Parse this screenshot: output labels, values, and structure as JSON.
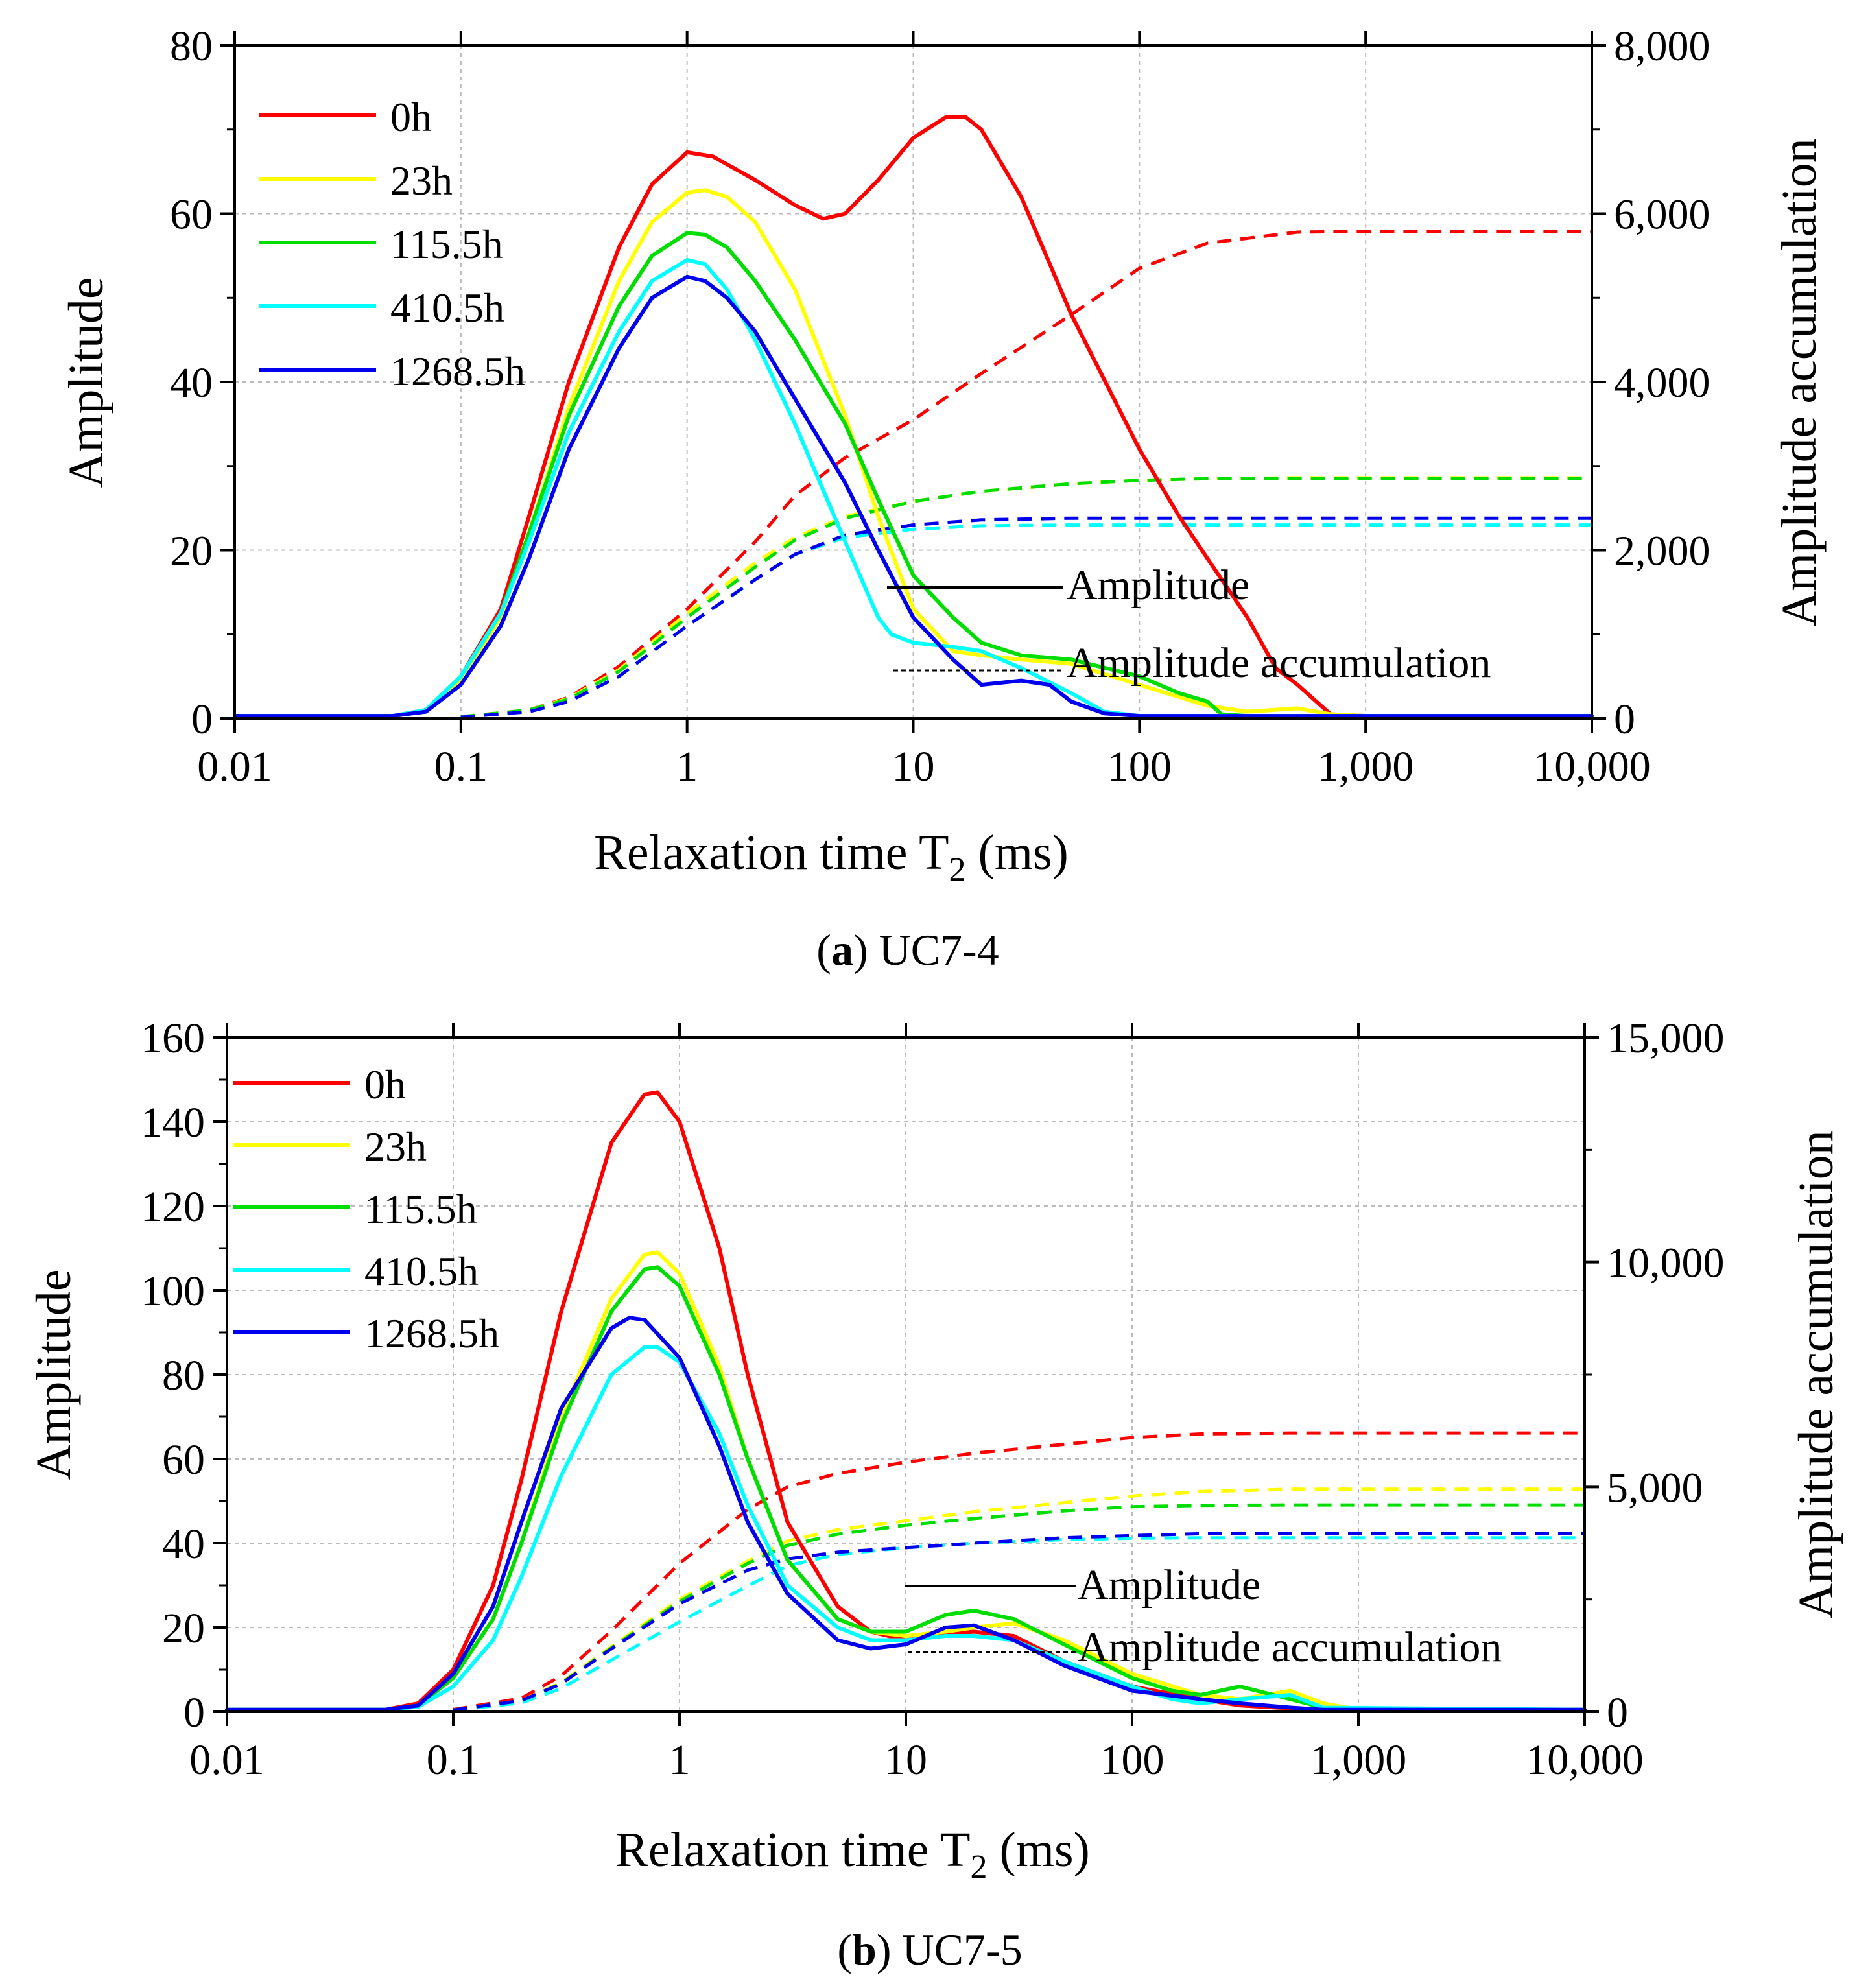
{
  "chart_data": [
    {
      "id": "a",
      "type": "line",
      "caption_letter": "a",
      "caption_text": ") UC7-4",
      "caption_open": "(",
      "xlabel_main": "Relaxation time T",
      "xlabel_sub": "2",
      "xlabel_unit": " (ms)",
      "ylabel": "Amplitude",
      "y2label": "Amplitude accumulation",
      "xscale": "log",
      "xlim": [
        0.01,
        10000
      ],
      "ylim": [
        0,
        80
      ],
      "y2lim": [
        0,
        8000
      ],
      "x_ticks": [
        0.01,
        0.1,
        1,
        10,
        100,
        1000,
        10000
      ],
      "x_tick_labels": [
        "0.01",
        "0.1",
        "1",
        "10",
        "100",
        "1,000",
        "10,000"
      ],
      "y_ticks": [
        0,
        20,
        40,
        60,
        80
      ],
      "y_tick_labels": [
        "0",
        "20",
        "40",
        "60",
        "80"
      ],
      "y2_ticks": [
        0,
        2000,
        4000,
        6000,
        8000
      ],
      "y2_tick_labels": [
        "0",
        "2,000",
        "4,000",
        "6,000",
        "8,000"
      ],
      "grid": true,
      "legend_placement": "top-left",
      "annotation_solid": "Amplitude",
      "annotation_dashed": "Amplitude accumulation",
      "series": [
        {
          "name": "0h",
          "color": "#ff0000",
          "x": [
            0.01,
            0.05,
            0.07,
            0.1,
            0.15,
            0.2,
            0.3,
            0.5,
            0.7,
            1,
            1.3,
            2,
            3,
            4,
            5,
            7,
            10,
            14,
            17,
            20,
            30,
            50,
            100,
            150,
            200,
            300,
            400,
            500,
            700,
            1000,
            10000
          ],
          "y": [
            0.3,
            0.3,
            1,
            5,
            13,
            24,
            40,
            56,
            63.5,
            67.3,
            66.8,
            64,
            61,
            59.4,
            60,
            64,
            69,
            71.5,
            71.5,
            70,
            62,
            48,
            32,
            24,
            19,
            12,
            6,
            4,
            0.5,
            0.3,
            0.3
          ],
          "acc_x": [
            0.1,
            0.2,
            0.3,
            0.5,
            1,
            2,
            3,
            5,
            10,
            20,
            50,
            100,
            200,
            500,
            1000,
            10000
          ],
          "acc_y": [
            20,
            100,
            250,
            620,
            1300,
            2100,
            2650,
            3100,
            3550,
            4100,
            4800,
            5350,
            5650,
            5780,
            5790,
            5790
          ]
        },
        {
          "name": "23h",
          "color": "#ffff00",
          "x": [
            0.01,
            0.05,
            0.07,
            0.1,
            0.15,
            0.2,
            0.3,
            0.5,
            0.7,
            1,
            1.2,
            1.5,
            2,
            3,
            5,
            7,
            10,
            15,
            20,
            30,
            50,
            100,
            200,
            300,
            500,
            700,
            1000,
            10000
          ],
          "y": [
            0.3,
            0.3,
            0.8,
            4.5,
            12,
            22,
            37,
            52,
            59,
            62.5,
            62.8,
            62,
            59,
            51,
            36,
            24,
            13,
            8,
            7.5,
            7,
            6.5,
            4,
            1.5,
            0.8,
            1.2,
            0.5,
            0.3,
            0.3
          ],
          "acc_x": [
            0.1,
            0.2,
            0.3,
            0.5,
            1,
            2,
            3,
            5,
            10,
            20,
            50,
            100,
            200,
            500,
            1000,
            10000
          ],
          "acc_y": [
            20,
            100,
            240,
            580,
            1250,
            1850,
            2150,
            2400,
            2580,
            2700,
            2790,
            2830,
            2850,
            2860,
            2860,
            2860
          ]
        },
        {
          "name": "115.5h",
          "color": "#00dd00",
          "x": [
            0.01,
            0.05,
            0.07,
            0.1,
            0.15,
            0.2,
            0.3,
            0.5,
            0.7,
            1,
            1.2,
            1.5,
            2,
            3,
            5,
            7,
            10,
            15,
            20,
            30,
            50,
            100,
            150,
            200,
            230,
            300,
            500,
            700,
            1000,
            10000
          ],
          "y": [
            0.3,
            0.3,
            1,
            5,
            12.5,
            22,
            36,
            49,
            55,
            57.7,
            57.5,
            56,
            52,
            45,
            35,
            26,
            17,
            12,
            9,
            7.5,
            7,
            5,
            3,
            2,
            0.5,
            0.3,
            0.3,
            0.3,
            0.3,
            0.3
          ],
          "acc_x": [
            0.1,
            0.2,
            0.3,
            0.5,
            1,
            2,
            3,
            5,
            10,
            20,
            50,
            100,
            200,
            500,
            1000,
            10000
          ],
          "acc_y": [
            20,
            100,
            230,
            560,
            1200,
            1800,
            2120,
            2380,
            2580,
            2700,
            2790,
            2830,
            2850,
            2850,
            2850,
            2850
          ]
        },
        {
          "name": "410.5h",
          "color": "#00ffff",
          "x": [
            0.01,
            0.05,
            0.07,
            0.1,
            0.15,
            0.2,
            0.3,
            0.5,
            0.7,
            1,
            1.2,
            1.5,
            2,
            3,
            5,
            7,
            8,
            10,
            15,
            20,
            30,
            50,
            70,
            100,
            10000
          ],
          "y": [
            0.3,
            0.3,
            1,
            5,
            12.5,
            21,
            34,
            46,
            52,
            54.5,
            54,
            51,
            45,
            35,
            21,
            12,
            10,
            9,
            8.5,
            8,
            6,
            3,
            0.8,
            0.3,
            0.3
          ],
          "acc_x": [
            0.1,
            0.2,
            0.3,
            0.5,
            1,
            2,
            3,
            5,
            10,
            20,
            50,
            100,
            200,
            500,
            1000,
            10000
          ],
          "acc_y": [
            15,
            80,
            200,
            500,
            1100,
            1650,
            1950,
            2150,
            2250,
            2290,
            2300,
            2300,
            2300,
            2300,
            2300,
            2300
          ]
        },
        {
          "name": "1268.5h",
          "color": "#0000ee",
          "x": [
            0.01,
            0.05,
            0.07,
            0.1,
            0.15,
            0.2,
            0.3,
            0.5,
            0.7,
            1,
            1.2,
            1.5,
            2,
            3,
            5,
            7,
            10,
            15,
            20,
            30,
            40,
            50,
            70,
            100,
            10000
          ],
          "y": [
            0.3,
            0.3,
            0.8,
            4,
            11,
            19,
            32,
            44,
            50,
            52.5,
            52,
            50,
            46,
            38,
            28,
            20,
            12,
            7,
            4,
            4.5,
            4,
            2,
            0.6,
            0.3,
            0.3
          ],
          "acc_x": [
            0.1,
            0.2,
            0.3,
            0.5,
            1,
            2,
            3,
            5,
            10,
            20,
            50,
            100,
            200,
            500,
            1000,
            10000
          ],
          "acc_y": [
            15,
            80,
            200,
            500,
            1100,
            1650,
            1950,
            2180,
            2300,
            2360,
            2380,
            2380,
            2380,
            2380,
            2380,
            2380
          ]
        }
      ]
    },
    {
      "id": "b",
      "type": "line",
      "caption_letter": "b",
      "caption_text": ") UC7-5",
      "caption_open": "(",
      "xlabel_main": "Relaxation time T",
      "xlabel_sub": "2",
      "xlabel_unit": " (ms)",
      "ylabel": "Amplitude",
      "y2label": "Amplitude accumulation",
      "xscale": "log",
      "xlim": [
        0.01,
        10000
      ],
      "ylim": [
        0,
        160
      ],
      "y2lim": [
        0,
        15000
      ],
      "x_ticks": [
        0.01,
        0.1,
        1,
        10,
        100,
        1000,
        10000
      ],
      "x_tick_labels": [
        "0.01",
        "0.1",
        "1",
        "10",
        "100",
        "1,000",
        "10,000"
      ],
      "y_ticks": [
        0,
        20,
        40,
        60,
        80,
        100,
        120,
        140,
        160
      ],
      "y_tick_labels": [
        "0",
        "20",
        "40",
        "60",
        "80",
        "100",
        "120",
        "140",
        "160"
      ],
      "y2_ticks": [
        0,
        5000,
        10000,
        15000
      ],
      "y2_tick_labels": [
        "0",
        "5,000",
        "10,000",
        "15,000"
      ],
      "grid": true,
      "legend_placement": "top-left",
      "annotation_solid": "Amplitude",
      "annotation_dashed": "Amplitude accumulation",
      "series": [
        {
          "name": "0h",
          "color": "#ff0000",
          "x": [
            0.01,
            0.05,
            0.07,
            0.1,
            0.15,
            0.2,
            0.3,
            0.5,
            0.7,
            0.8,
            1,
            1.5,
            2,
            3,
            5,
            7,
            10,
            15,
            20,
            30,
            50,
            100,
            200,
            300,
            500,
            1000,
            10000
          ],
          "y": [
            0.5,
            0.5,
            2,
            10,
            30,
            55,
            95,
            135,
            146.5,
            147,
            140,
            110,
            80,
            45,
            25,
            19,
            17,
            18.5,
            19,
            18,
            12,
            6,
            3,
            1.5,
            0.8,
            0.5,
            0.5
          ],
          "acc_x": [
            0.1,
            0.2,
            0.3,
            0.5,
            1,
            2,
            3,
            5,
            10,
            20,
            50,
            100,
            200,
            500,
            1000,
            10000
          ],
          "acc_y": [
            50,
            300,
            800,
            1800,
            3300,
            4500,
            5000,
            5300,
            5550,
            5750,
            5950,
            6100,
            6180,
            6200,
            6200,
            6200
          ]
        },
        {
          "name": "23h",
          "color": "#ffff00",
          "x": [
            0.01,
            0.05,
            0.07,
            0.1,
            0.15,
            0.2,
            0.3,
            0.5,
            0.7,
            0.8,
            1,
            1.5,
            2,
            3,
            5,
            7,
            10,
            15,
            20,
            30,
            50,
            100,
            200,
            300,
            500,
            700,
            1000,
            10000
          ],
          "y": [
            0.5,
            0.5,
            1.5,
            8,
            22,
            40,
            70,
            98,
            108.5,
            109,
            104,
            82,
            60,
            36,
            22,
            19,
            18,
            19,
            20,
            21,
            17,
            9,
            4,
            3,
            5,
            2,
            0.5,
            0.5
          ],
          "acc_x": [
            0.1,
            0.2,
            0.3,
            0.5,
            1,
            2,
            3,
            5,
            10,
            20,
            50,
            100,
            200,
            500,
            1000,
            10000
          ],
          "acc_y": [
            40,
            250,
            650,
            1450,
            2500,
            3350,
            3800,
            4050,
            4250,
            4450,
            4650,
            4800,
            4900,
            4950,
            4950,
            4950
          ]
        },
        {
          "name": "115.5h",
          "color": "#00dd00",
          "x": [
            0.01,
            0.05,
            0.07,
            0.1,
            0.15,
            0.2,
            0.3,
            0.5,
            0.7,
            0.8,
            1,
            1.5,
            2,
            3,
            5,
            7,
            10,
            15,
            20,
            30,
            50,
            100,
            150,
            200,
            300,
            500,
            700,
            1000,
            10000
          ],
          "y": [
            0.5,
            0.5,
            1.5,
            8,
            22,
            40,
            68,
            95,
            105,
            105.5,
            101,
            80,
            60,
            36,
            22,
            19,
            19,
            23,
            24,
            22,
            16,
            8,
            5,
            4,
            6,
            3,
            1,
            0.5,
            0.5
          ],
          "acc_x": [
            0.1,
            0.2,
            0.3,
            0.5,
            1,
            2,
            3,
            5,
            10,
            20,
            50,
            100,
            200,
            500,
            1000,
            10000
          ],
          "acc_y": [
            40,
            240,
            630,
            1420,
            2450,
            3300,
            3700,
            3950,
            4150,
            4300,
            4470,
            4560,
            4590,
            4600,
            4600,
            4600
          ]
        },
        {
          "name": "410.5h",
          "color": "#00ffff",
          "x": [
            0.01,
            0.05,
            0.07,
            0.1,
            0.15,
            0.2,
            0.3,
            0.5,
            0.7,
            0.8,
            1,
            1.5,
            2,
            3,
            5,
            7,
            10,
            15,
            20,
            30,
            50,
            100,
            150,
            200,
            300,
            500,
            700,
            10000
          ],
          "y": [
            0.5,
            0.5,
            1.2,
            6,
            17,
            32,
            56,
            80,
            86.5,
            86.5,
            83,
            66,
            49,
            30,
            20,
            17,
            17,
            18,
            18,
            17,
            12,
            6,
            3,
            2,
            3,
            4,
            1,
            0.5
          ],
          "acc_x": [
            0.1,
            0.2,
            0.3,
            0.5,
            1,
            2,
            3,
            5,
            10,
            20,
            50,
            100,
            200,
            500,
            1000,
            10000
          ],
          "acc_y": [
            30,
            200,
            520,
            1150,
            2000,
            2800,
            3250,
            3500,
            3650,
            3750,
            3830,
            3860,
            3870,
            3870,
            3870,
            3870
          ]
        },
        {
          "name": "1268.5h",
          "color": "#0000ee",
          "x": [
            0.01,
            0.05,
            0.07,
            0.1,
            0.15,
            0.2,
            0.3,
            0.5,
            0.6,
            0.7,
            1,
            1.5,
            2,
            3,
            5,
            7,
            10,
            15,
            20,
            30,
            50,
            100,
            200,
            300,
            500,
            700,
            10000
          ],
          "y": [
            0.5,
            0.5,
            1.5,
            9,
            25,
            45,
            72,
            91,
            93.5,
            93,
            84,
            63,
            45,
            28,
            17,
            15,
            16,
            20,
            20.5,
            17,
            11,
            5,
            3,
            2,
            1,
            0.5,
            0.5
          ],
          "acc_x": [
            0.1,
            0.2,
            0.3,
            0.5,
            1,
            2,
            3,
            5,
            10,
            20,
            50,
            100,
            200,
            500,
            1000,
            10000
          ],
          "acc_y": [
            40,
            250,
            620,
            1400,
            2400,
            3150,
            3400,
            3550,
            3650,
            3750,
            3870,
            3920,
            3960,
            3970,
            3970,
            3970
          ]
        }
      ]
    }
  ]
}
